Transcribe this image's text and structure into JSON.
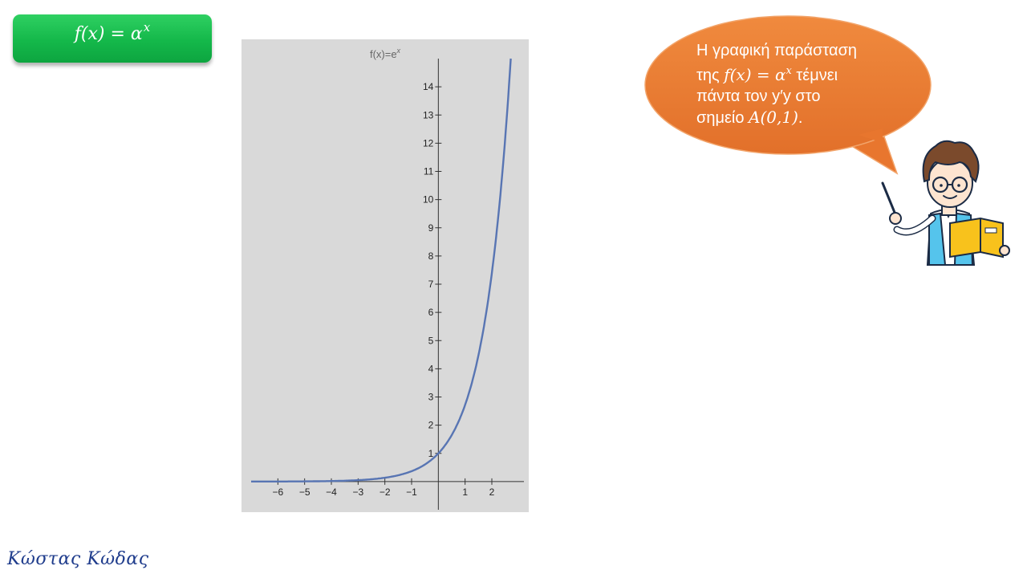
{
  "title_box": {
    "prefix": "f(x) = α",
    "sup": "x"
  },
  "speech": {
    "line1": "Η γραφική παράσταση",
    "line2_pre": "της ",
    "line2_math": "f(x) = α",
    "line2_sup": "x",
    "line2_post": " τέμνει",
    "line3": "πάντα τον y′y στο",
    "line4_pre": "σημείο ",
    "line4_math": "A(0,1)",
    "line4_post": "."
  },
  "author": "Κώστας Κώδας",
  "chart_data": {
    "type": "line",
    "title": "f(x)=e",
    "title_sup": "x",
    "function": "exp",
    "xlim": [
      -7.0,
      3.2
    ],
    "ylim": [
      -1.0,
      15.0
    ],
    "x_ticks": [
      -6,
      -5,
      -4,
      -3,
      -2,
      -1,
      1,
      2
    ],
    "x_tick_labels": [
      "−6",
      "−5",
      "−4",
      "−3",
      "−2",
      "−1",
      "1",
      "2"
    ],
    "y_ticks": [
      1,
      2,
      3,
      4,
      5,
      6,
      7,
      8,
      9,
      10,
      11,
      12,
      13,
      14
    ],
    "y_tick_labels": [
      "1",
      "2",
      "3",
      "4",
      "5",
      "6",
      "7",
      "8",
      "9",
      "10",
      "11",
      "12",
      "13",
      "14"
    ],
    "x": [
      -7,
      -6,
      -5,
      -4,
      -3,
      -2,
      -1,
      0,
      0.5,
      1,
      1.5,
      2,
      2.3,
      2.5,
      2.7
    ],
    "y": [
      0.0009,
      0.0025,
      0.0067,
      0.0183,
      0.0498,
      0.1353,
      0.3679,
      1.0,
      1.6487,
      2.7183,
      4.4817,
      7.3891,
      9.9742,
      12.1825,
      14.8797
    ],
    "series_color": "#5875b3",
    "background": "#d9d9d9",
    "grid": false
  },
  "colors": {
    "title_green": "#14b84a",
    "bubble_orange": "#ed7d31",
    "author_blue": "#1f3c8c"
  }
}
